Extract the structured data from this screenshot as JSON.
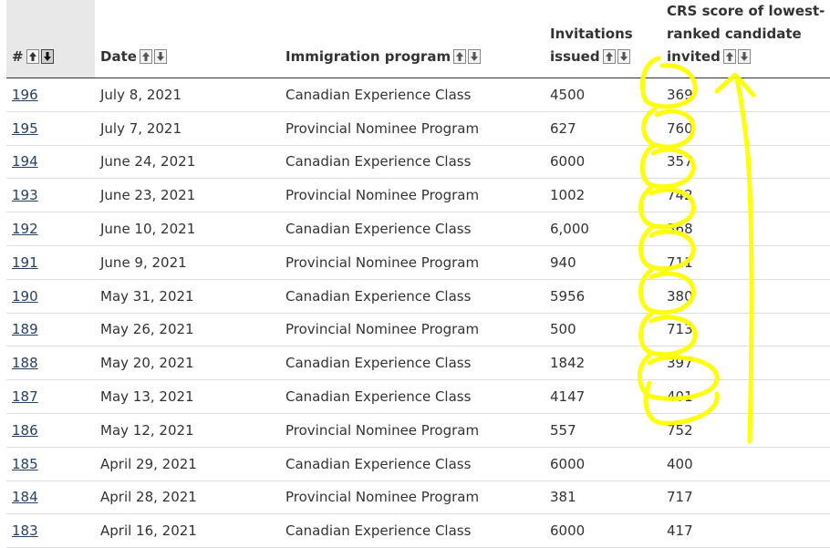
{
  "table": {
    "headers": [
      {
        "label": "#",
        "sorted": true
      },
      {
        "label": "Date",
        "sorted": false
      },
      {
        "label": "Immigration program",
        "sorted": false
      },
      {
        "label": "Invitations issued",
        "sorted": false
      },
      {
        "label": "CRS score of lowest-ranked candidate invited",
        "sorted": false
      }
    ],
    "rows": [
      {
        "num": "196",
        "date": "July 8, 2021",
        "program": "Canadian Experience Class",
        "invitations": "4500",
        "crs": "369"
      },
      {
        "num": "195",
        "date": "July 7, 2021",
        "program": "Provincial Nominee Program",
        "invitations": "627",
        "crs": "760"
      },
      {
        "num": "194",
        "date": "June 24, 2021",
        "program": "Canadian Experience Class",
        "invitations": "6000",
        "crs": "357"
      },
      {
        "num": "193",
        "date": "June 23, 2021",
        "program": "Provincial Nominee Program",
        "invitations": "1002",
        "crs": "742"
      },
      {
        "num": "192",
        "date": "June 10, 2021",
        "program": "Canadian Experience Class",
        "invitations": "6,000",
        "crs": "368"
      },
      {
        "num": "191",
        "date": "June 9, 2021",
        "program": "Provincial Nominee Program",
        "invitations": "940",
        "crs": "711"
      },
      {
        "num": "190",
        "date": "May 31, 2021",
        "program": "Canadian Experience Class",
        "invitations": "5956",
        "crs": "380"
      },
      {
        "num": "189",
        "date": "May 26, 2021",
        "program": "Provincial Nominee Program",
        "invitations": "500",
        "crs": "713"
      },
      {
        "num": "188",
        "date": "May 20, 2021",
        "program": "Canadian Experience Class",
        "invitations": "1842",
        "crs": "397"
      },
      {
        "num": "187",
        "date": "May 13, 2021",
        "program": "Canadian Experience Class",
        "invitations": "4147",
        "crs": "401"
      },
      {
        "num": "186",
        "date": "May 12, 2021",
        "program": "Provincial Nominee Program",
        "invitations": "557",
        "crs": "752"
      },
      {
        "num": "185",
        "date": "April 29, 2021",
        "program": "Canadian Experience Class",
        "invitations": "6000",
        "crs": "400"
      },
      {
        "num": "184",
        "date": "April 28, 2021",
        "program": "Provincial Nominee Program",
        "invitations": "381",
        "crs": "717"
      },
      {
        "num": "183",
        "date": "April 16, 2021",
        "program": "Canadian Experience Class",
        "invitations": "6000",
        "crs": "417"
      }
    ]
  },
  "colors": {
    "link": "#284162",
    "highlight": "#ffff00",
    "sorted_header_bg": "#e8e8e8"
  },
  "icons": {
    "sort_up": "arrow-up-icon",
    "sort_down": "arrow-down-icon"
  }
}
